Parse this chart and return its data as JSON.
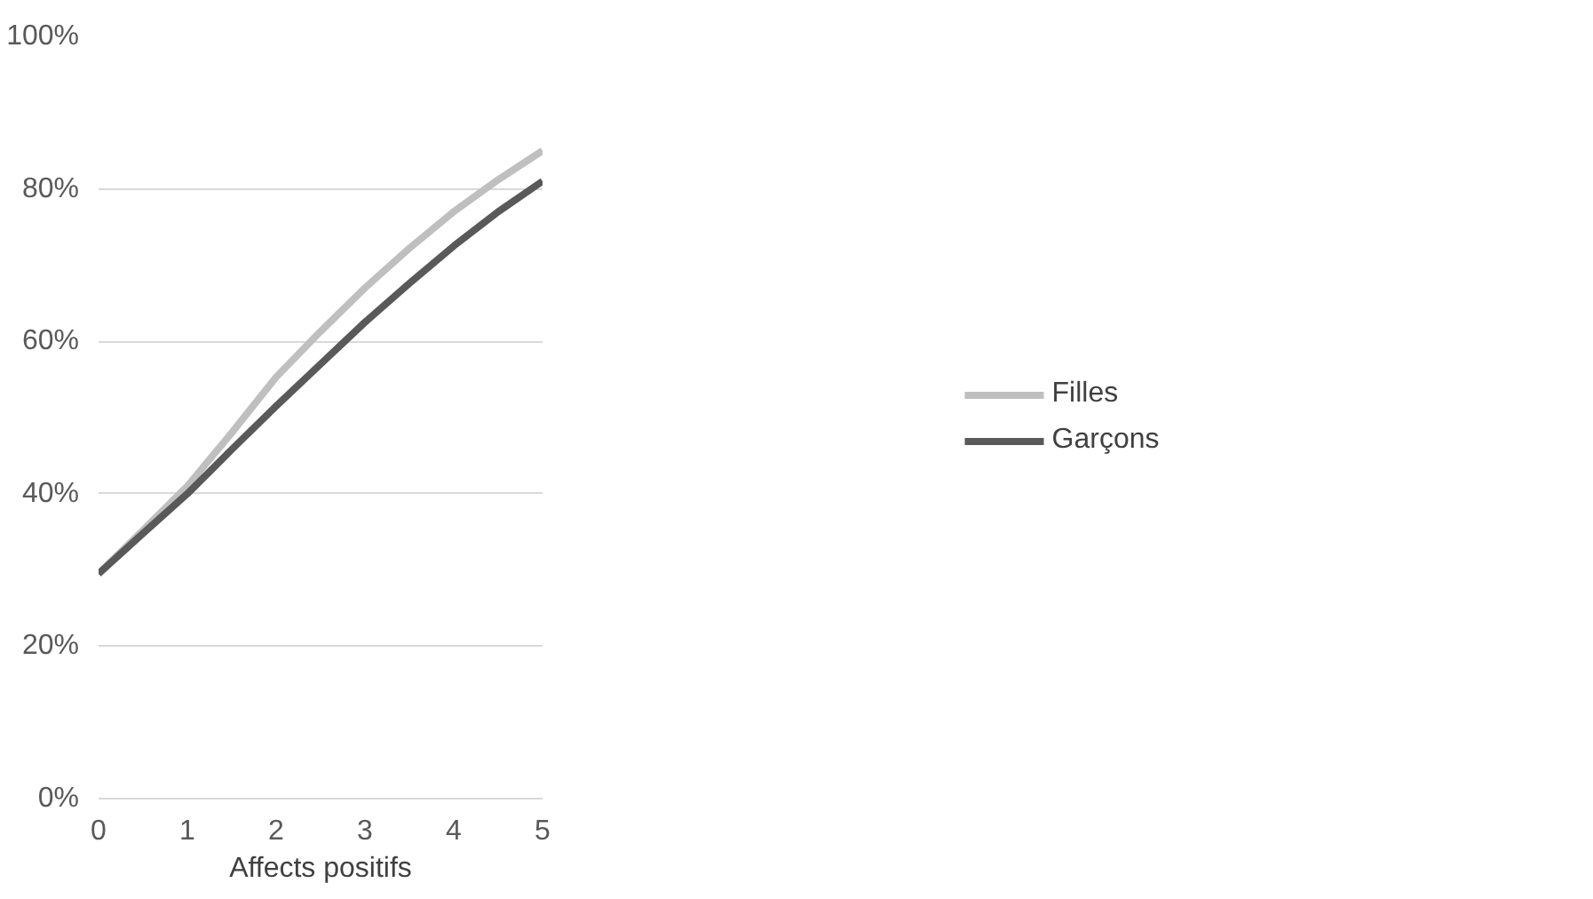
{
  "chart_data": {
    "type": "line",
    "xlabel": "Affects positifs",
    "x": [
      0,
      0.5,
      1,
      1.5,
      2,
      2.5,
      3,
      3.5,
      4,
      4.5,
      5
    ],
    "series": [
      {
        "name": "Filles",
        "color": "#bfbfbf",
        "values": [
          29.5,
          35.2,
          41,
          48,
          55.3,
          61.3,
          67,
          72.2,
          77,
          81.2,
          85
        ]
      },
      {
        "name": "Garçons",
        "color": "#595959",
        "values": [
          29.5,
          34.8,
          40,
          45.8,
          51.5,
          57,
          62.5,
          67.6,
          72.5,
          77,
          81
        ]
      }
    ],
    "xlim": [
      0,
      5
    ],
    "xticks": [
      0,
      1,
      2,
      3,
      4,
      5
    ],
    "ylim": [
      0,
      100
    ],
    "yticks": [
      {
        "value": 0,
        "label": "0%"
      },
      {
        "value": 20,
        "label": "20%"
      },
      {
        "value": 40,
        "label": "40%"
      },
      {
        "value": 60,
        "label": "60%"
      },
      {
        "value": 80,
        "label": "80%"
      },
      {
        "value": 100,
        "label": "100%"
      }
    ],
    "grid": "y",
    "legend": "right",
    "marker": "none",
    "line_style": "solid"
  }
}
